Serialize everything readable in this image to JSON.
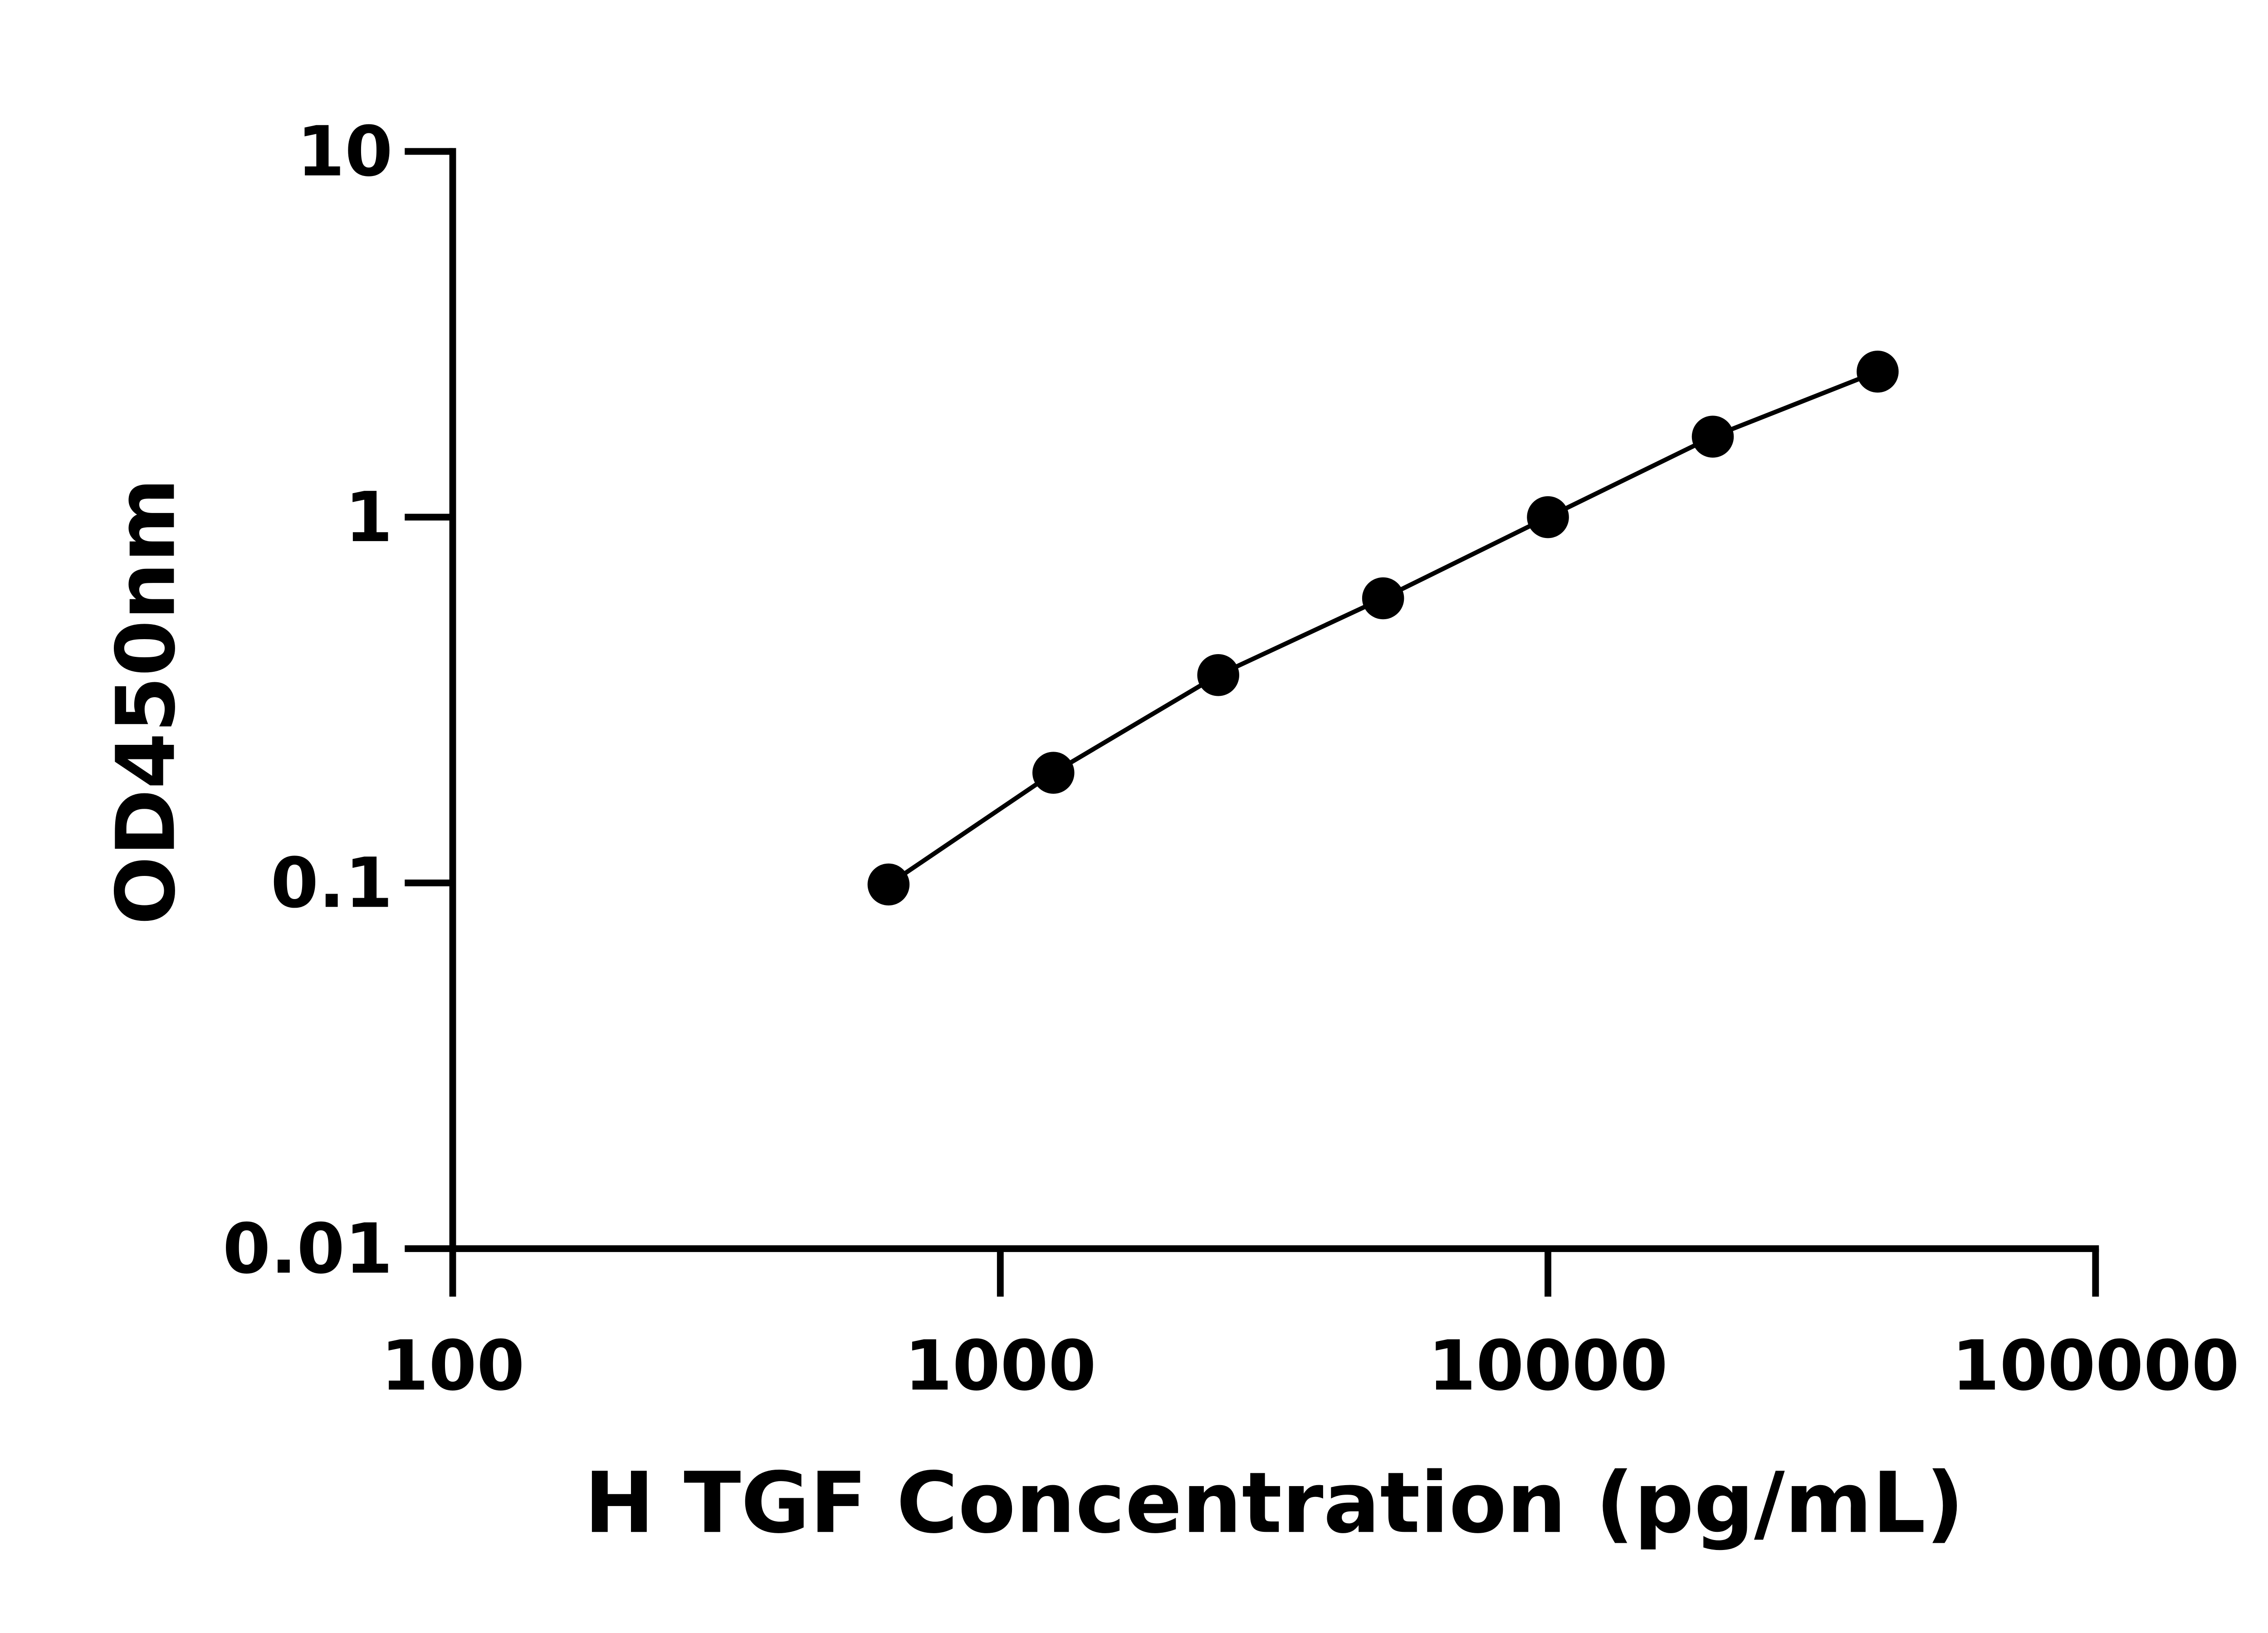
{
  "chart_data": {
    "type": "line",
    "x_label": "H TGF Concentration (pg/mL)",
    "y_label": "OD450nm",
    "x": [
      625,
      1250,
      2500,
      5000,
      10000,
      20000,
      40000
    ],
    "series": [
      {
        "color": "#000000",
        "values": [
          0.099,
          0.2,
          0.37,
          0.6,
          1.0,
          1.66,
          2.5
        ]
      }
    ],
    "xlim": [
      100,
      100000
    ],
    "xticks": [
      100,
      1000,
      10000,
      100000
    ],
    "ylim": [
      0.01,
      10
    ],
    "yticks": [
      0.01,
      0.1,
      1,
      10
    ],
    "x_log": true,
    "y_log": true,
    "grid": false
  }
}
